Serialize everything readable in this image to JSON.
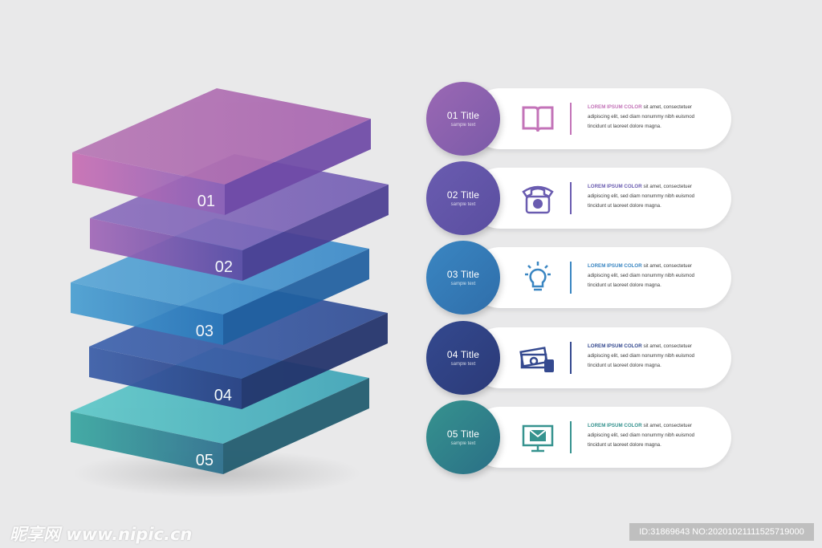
{
  "layers": [
    {
      "label": "01",
      "colors": {
        "top_a": "#b878b5",
        "top_b": "#a766b0",
        "front_a": "#c86fb4",
        "front_b": "#8c64b8",
        "side": "#6f4aa7"
      }
    },
    {
      "label": "02",
      "colors": {
        "top_a": "#8d6fbd",
        "top_b": "#7561b5",
        "front_a": "#a168b8",
        "front_b": "#5e4ea6",
        "side": "#4b3e92"
      }
    },
    {
      "label": "03",
      "colors": {
        "top_a": "#5aa7d6",
        "top_b": "#3d8ac8",
        "front_a": "#4a9fd2",
        "front_b": "#2c78ba",
        "side": "#2060a0"
      }
    },
    {
      "label": "04",
      "colors": {
        "top_a": "#3f64ae",
        "top_b": "#334f96",
        "front_a": "#3a5ea8",
        "front_b": "#2a3f83",
        "side": "#22326b"
      }
    },
    {
      "label": "05",
      "colors": {
        "top_a": "#5ec8c8",
        "top_b": "#3fa3b7",
        "front_a": "#38a7a0",
        "front_b": "#2c6f8d",
        "side": "#1f5a6e"
      }
    }
  ],
  "items": [
    {
      "title": "01 Title",
      "subtitle": "sample text",
      "icon": "book-icon",
      "text_lead": "LOREM IPSUM COLOR",
      "text_line1": "sit amet, consectetuer",
      "text_line2": "adipiscing elit, sed diam nonummy nibh euismod",
      "text_line3": "tincidunt ut laoreet dolore magna.",
      "color": "#7a5aa8",
      "color2": "#9b68b4"
    },
    {
      "title": "02 Title",
      "subtitle": "sample text",
      "icon": "telephone-icon",
      "text_lead": "LOREM IPSUM COLOR",
      "text_line1": "sit amet, consectetuer",
      "text_line2": "adipiscing elit, sed diam nonummy nibh euismod",
      "text_line3": "tincidunt ut laoreet dolore magna.",
      "color": "#5a4ea0",
      "color2": "#6a5cb0"
    },
    {
      "title": "03 Title",
      "subtitle": "sample text",
      "icon": "lightbulb-icon",
      "text_lead": "LOREM IPSUM COLOR",
      "text_line1": "sit amet, consectetuer",
      "text_line2": "adipiscing elit, sed diam nonummy nibh euismod",
      "text_line3": "tincidunt ut laoreet dolore magna.",
      "color": "#2f6eaa",
      "color2": "#3a86c2"
    },
    {
      "title": "04 Title",
      "subtitle": "sample text",
      "icon": "money-icon",
      "text_lead": "LOREM IPSUM COLOR",
      "text_line1": "sit amet, consectetuer",
      "text_line2": "adipiscing elit, sed diam nonummy nibh euismod",
      "text_line3": "tincidunt ut laoreet dolore magna.",
      "color": "#2b3a78",
      "color2": "#34498f"
    },
    {
      "title": "05 Title",
      "subtitle": "sample text",
      "icon": "email-monitor-icon",
      "text_lead": "LOREM IPSUM COLOR",
      "text_line1": "sit amet, consectetuer",
      "text_line2": "adipiscing elit, sed diam nonummy nibh euismod",
      "text_line3": "tincidunt ut laoreet dolore magna.",
      "color": "#2a6f86",
      "color2": "#36938f"
    }
  ],
  "watermark_left": "昵享网 www.nipic.cn",
  "watermark_right": "ID:31869643 NO:20201021111525719000"
}
